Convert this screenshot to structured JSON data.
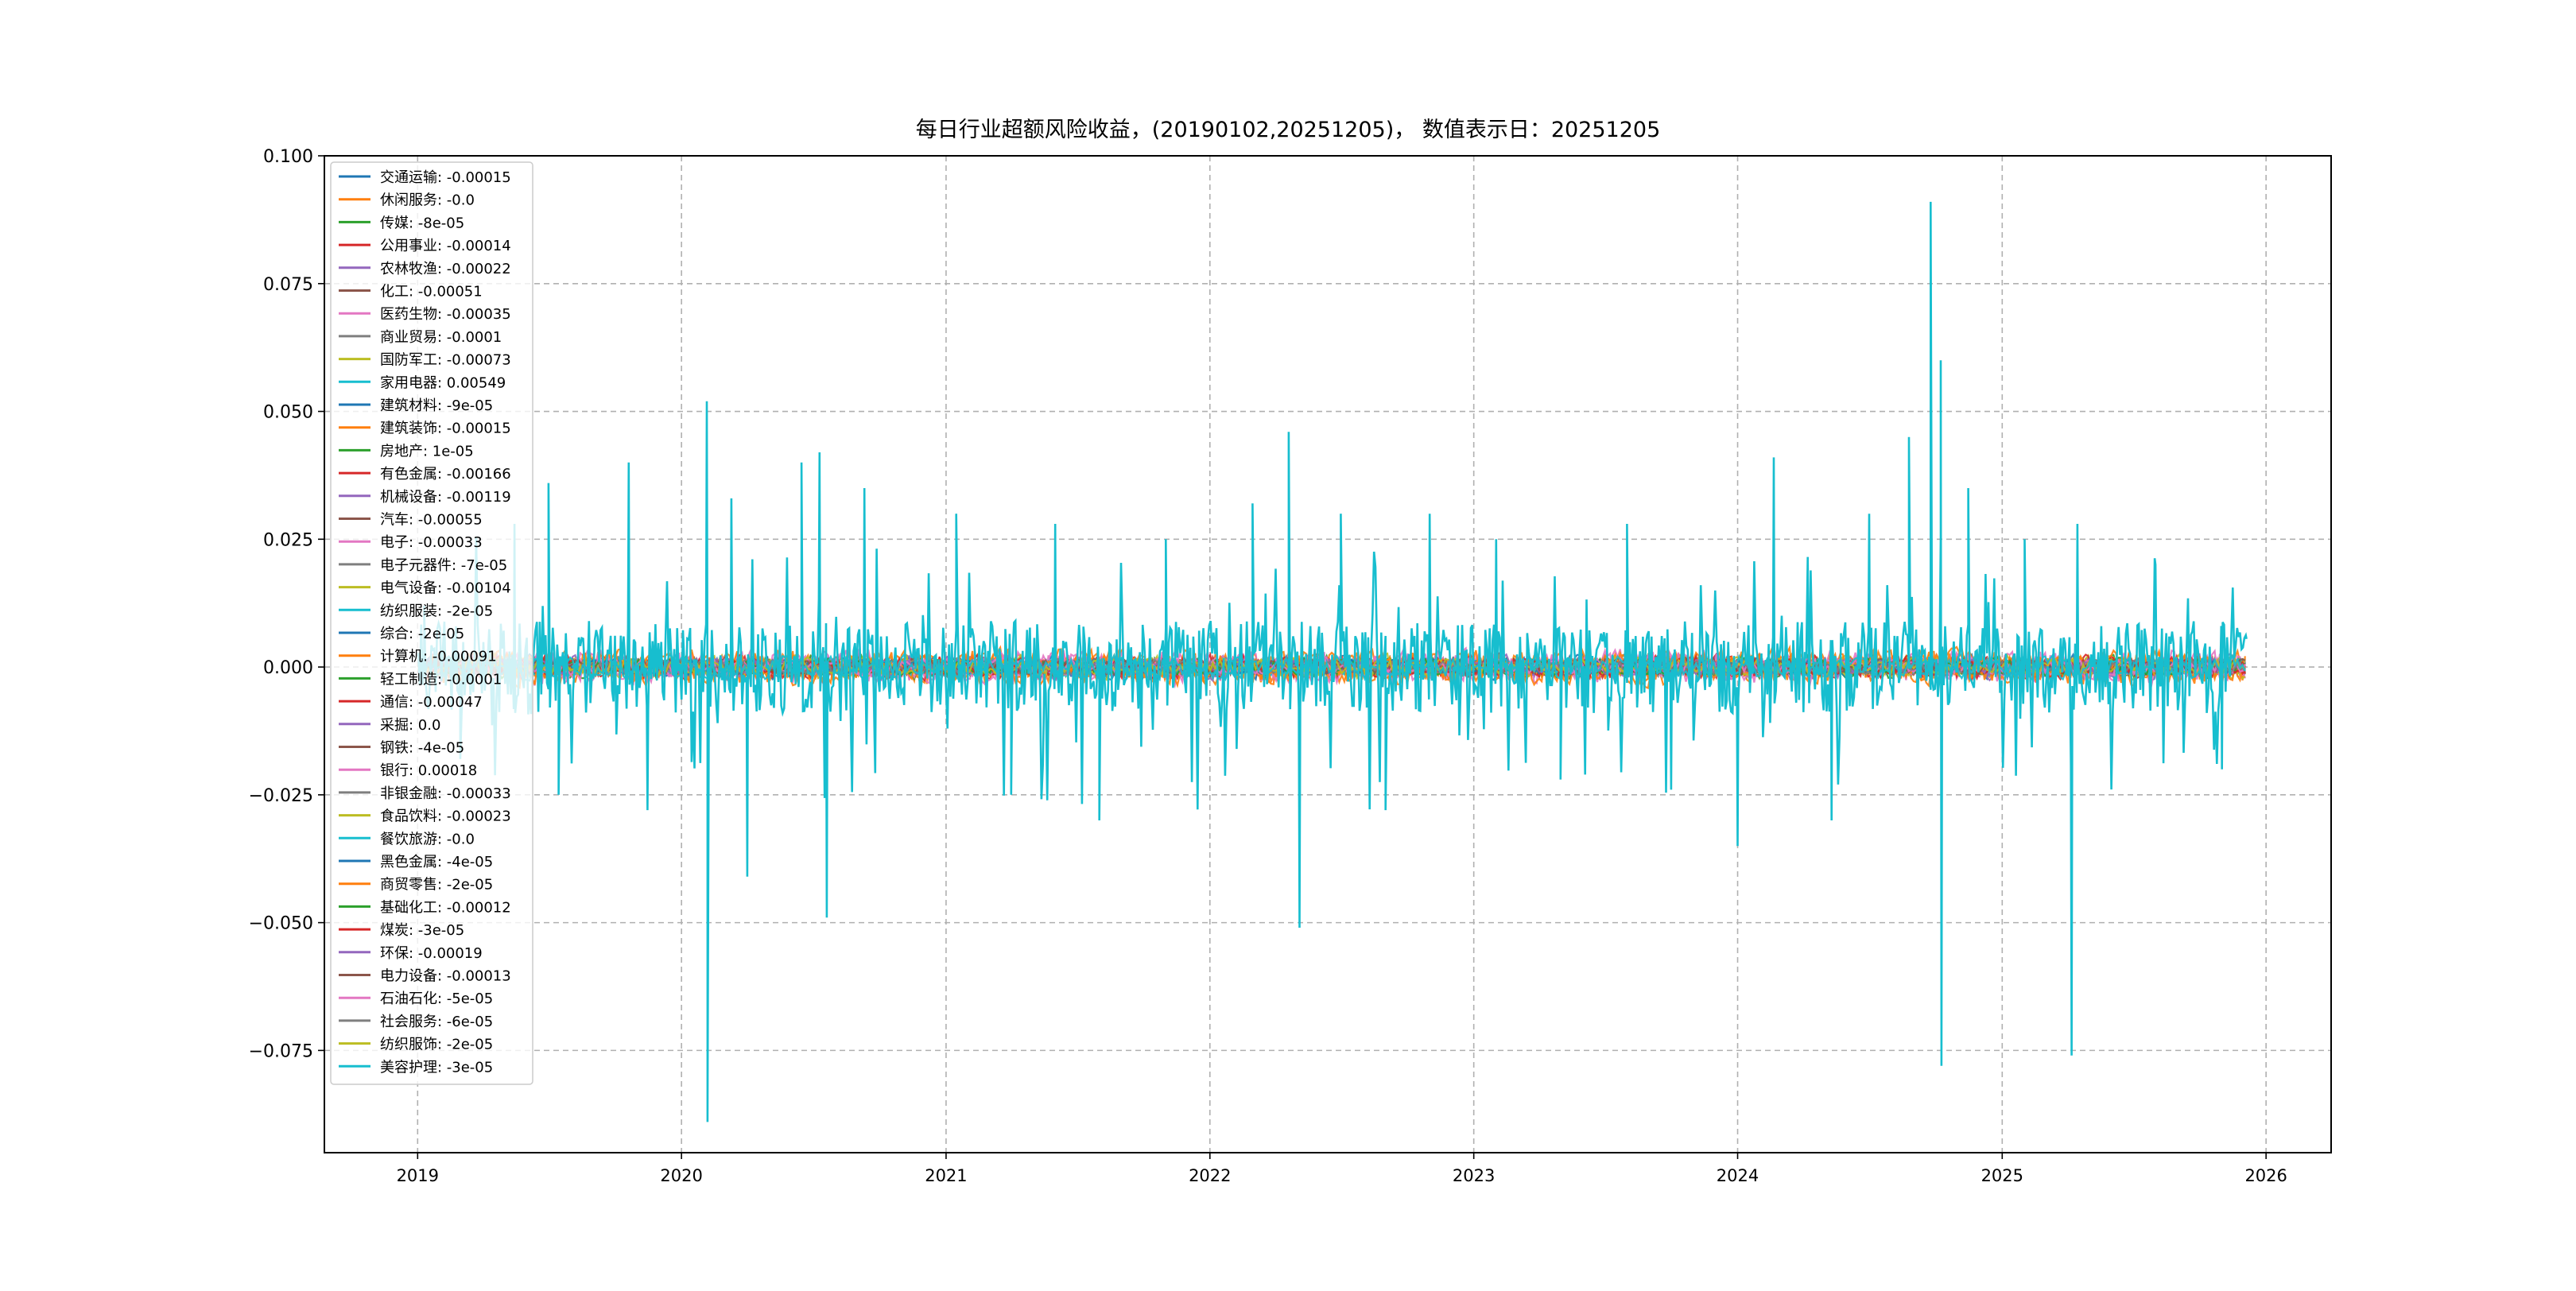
{
  "chart_data": {
    "type": "line",
    "title": "每日行业超额风险收益，(20190102,20251205)， 数值表示日：20251205",
    "xlabel": "",
    "ylabel": "",
    "x_range": [
      "2018-08-25",
      "2026-04-01"
    ],
    "ylim": [
      -0.095,
      0.1
    ],
    "x_ticks": [
      "2019",
      "2020",
      "2021",
      "2022",
      "2023",
      "2024",
      "2025",
      "2026"
    ],
    "y_ticks": [
      "0.100",
      "0.075",
      "0.050",
      "0.025",
      "0.000",
      "−0.025",
      "−0.050",
      "−0.075"
    ],
    "y_tick_values": [
      0.1,
      0.075,
      0.05,
      0.025,
      0.0,
      -0.025,
      -0.05,
      -0.075
    ],
    "grid": true,
    "legend_position": "upper-left",
    "date_range": [
      "2019-01-02",
      "2025-12-05"
    ],
    "series": [
      {
        "label": "交通运输: -0.00015",
        "color": "#1f77b4",
        "amplitude": 0.002
      },
      {
        "label": "休闲服务: -0.0",
        "color": "#ff7f0e",
        "amplitude": 0.003
      },
      {
        "label": "传媒: -8e-05",
        "color": "#2ca02c",
        "amplitude": 0.002
      },
      {
        "label": "公用事业: -0.00014",
        "color": "#d62728",
        "amplitude": 0.002
      },
      {
        "label": "农林牧渔: -0.00022",
        "color": "#9467bd",
        "amplitude": 0.002
      },
      {
        "label": "化工: -0.00051",
        "color": "#8c564b",
        "amplitude": 0.0015
      },
      {
        "label": "医药生物: -0.00035",
        "color": "#e377c2",
        "amplitude": 0.003
      },
      {
        "label": "商业贸易: -0.0001",
        "color": "#7f7f7f",
        "amplitude": 0.0015
      },
      {
        "label": "国防军工: -0.00073",
        "color": "#bcbd22",
        "amplitude": 0.002
      },
      {
        "label": "家用电器: 0.00549",
        "color": "#17becf",
        "amplitude": 0.012
      },
      {
        "label": "建筑材料: -9e-05",
        "color": "#1f77b4",
        "amplitude": 0.0015
      },
      {
        "label": "建筑装饰: -0.00015",
        "color": "#ff7f0e",
        "amplitude": 0.0025
      },
      {
        "label": "房地产: 1e-05",
        "color": "#2ca02c",
        "amplitude": 0.0015
      },
      {
        "label": "有色金属: -0.00166",
        "color": "#d62728",
        "amplitude": 0.002
      },
      {
        "label": "机械设备: -0.00119",
        "color": "#9467bd",
        "amplitude": 0.0015
      },
      {
        "label": "汽车: -0.00055",
        "color": "#8c564b",
        "amplitude": 0.0015
      },
      {
        "label": "电子: -0.00033",
        "color": "#e377c2",
        "amplitude": 0.0025
      },
      {
        "label": "电子元器件: -7e-05",
        "color": "#7f7f7f",
        "amplitude": 0.0012
      },
      {
        "label": "电气设备: -0.00104",
        "color": "#bcbd22",
        "amplitude": 0.0015
      },
      {
        "label": "纺织服装: -2e-05",
        "color": "#17becf",
        "amplitude": 0.0015
      },
      {
        "label": "综合: -2e-05",
        "color": "#1f77b4",
        "amplitude": 0.0012
      },
      {
        "label": "计算机: -0.00091",
        "color": "#ff7f0e",
        "amplitude": 0.003
      },
      {
        "label": "轻工制造: -0.0001",
        "color": "#2ca02c",
        "amplitude": 0.0012
      },
      {
        "label": "通信: -0.00047",
        "color": "#d62728",
        "amplitude": 0.0015
      },
      {
        "label": "采掘: 0.0",
        "color": "#9467bd",
        "amplitude": 0.0012
      },
      {
        "label": "钢铁: -4e-05",
        "color": "#8c564b",
        "amplitude": 0.0012
      },
      {
        "label": "银行: 0.00018",
        "color": "#e377c2",
        "amplitude": 0.0015
      },
      {
        "label": "非银金融: -0.00033",
        "color": "#7f7f7f",
        "amplitude": 0.0012
      },
      {
        "label": "食品饮料: -0.00023",
        "color": "#bcbd22",
        "amplitude": 0.0015
      },
      {
        "label": "餐饮旅游: -0.0",
        "color": "#17becf",
        "amplitude": 0.0012
      },
      {
        "label": "黑色金属: -4e-05",
        "color": "#1f77b4",
        "amplitude": 0.0012
      },
      {
        "label": "商贸零售: -2e-05",
        "color": "#ff7f0e",
        "amplitude": 0.0012
      },
      {
        "label": "基础化工: -0.00012",
        "color": "#2ca02c",
        "amplitude": 0.0012
      },
      {
        "label": "煤炭: -3e-05",
        "color": "#d62728",
        "amplitude": 0.0012
      },
      {
        "label": "环保: -0.00019",
        "color": "#9467bd",
        "amplitude": 0.0012
      },
      {
        "label": "电力设备: -0.00013",
        "color": "#8c564b",
        "amplitude": 0.0012
      },
      {
        "label": "石油石化: -5e-05",
        "color": "#e377c2",
        "amplitude": 0.0012
      },
      {
        "label": "社会服务: -6e-05",
        "color": "#7f7f7f",
        "amplitude": 0.0012
      },
      {
        "label": "纺织服饰: -2e-05",
        "color": "#bcbd22",
        "amplitude": 0.0012
      },
      {
        "label": "美容护理: -3e-05",
        "color": "#17becf",
        "amplitude": 0.002
      }
    ],
    "highlight_series": {
      "label": "家用电器: 0.00549",
      "color": "#17becf",
      "sampled_points": [
        [
          "2019-01-10",
          0.012
        ],
        [
          "2019-03-01",
          -0.018
        ],
        [
          "2019-05-15",
          0.028
        ],
        [
          "2019-07-01",
          0.036
        ],
        [
          "2019-07-15",
          -0.025
        ],
        [
          "2019-10-20",
          0.04
        ],
        [
          "2019-11-15",
          -0.028
        ],
        [
          "2020-02-05",
          0.052
        ],
        [
          "2020-02-06",
          -0.089
        ],
        [
          "2020-03-10",
          0.033
        ],
        [
          "2020-04-01",
          -0.041
        ],
        [
          "2020-06-15",
          0.04
        ],
        [
          "2020-07-10",
          0.042
        ],
        [
          "2020-07-20",
          -0.049
        ],
        [
          "2020-09-10",
          0.035
        ],
        [
          "2021-01-15",
          0.03
        ],
        [
          "2021-04-01",
          -0.025
        ],
        [
          "2021-06-01",
          0.028
        ],
        [
          "2021-08-01",
          -0.03
        ],
        [
          "2021-11-01",
          0.025
        ],
        [
          "2022-03-01",
          0.032
        ],
        [
          "2022-04-20",
          0.046
        ],
        [
          "2022-05-05",
          -0.051
        ],
        [
          "2022-07-01",
          0.03
        ],
        [
          "2022-09-01",
          -0.028
        ],
        [
          "2022-11-01",
          0.03
        ],
        [
          "2023-02-01",
          0.025
        ],
        [
          "2023-05-01",
          -0.022
        ],
        [
          "2023-08-01",
          0.028
        ],
        [
          "2023-10-01",
          -0.024
        ],
        [
          "2024-01-01",
          -0.035
        ],
        [
          "2024-02-20",
          0.041
        ],
        [
          "2024-05-10",
          -0.03
        ],
        [
          "2024-07-01",
          0.03
        ],
        [
          "2024-08-25",
          0.045
        ],
        [
          "2024-09-24",
          0.091
        ],
        [
          "2024-10-08",
          0.06
        ],
        [
          "2024-10-09",
          -0.078
        ],
        [
          "2024-11-15",
          0.035
        ],
        [
          "2025-02-01",
          0.025
        ],
        [
          "2025-04-07",
          -0.076
        ],
        [
          "2025-04-15",
          0.028
        ],
        [
          "2025-08-01",
          0.02
        ],
        [
          "2025-11-01",
          -0.02
        ],
        [
          "2025-12-05",
          0.00549
        ]
      ]
    }
  }
}
